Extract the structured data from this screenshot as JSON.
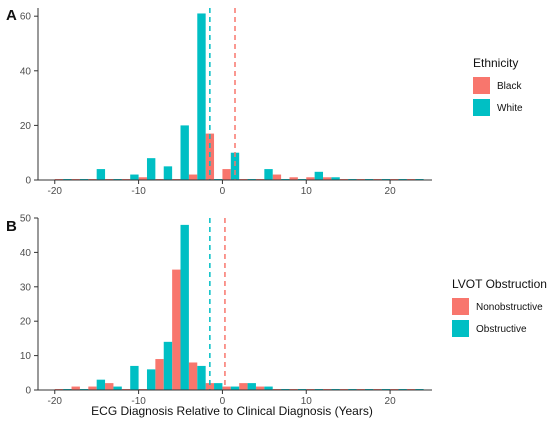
{
  "colors": {
    "series_a": "#F8766D",
    "series_b": "#00BFC4",
    "axis": "#333333"
  },
  "xlabel": "ECG Diagnosis Relative to Clinical Diagnosis (Years)",
  "chart_data": [
    {
      "type": "bar",
      "panel_label": "A",
      "title": "",
      "xlabel": "",
      "ylabel": "",
      "xlim": [
        -22,
        25
      ],
      "ylim": [
        0,
        63
      ],
      "xticks": [
        -20,
        -10,
        0,
        10,
        20
      ],
      "yticks": [
        0,
        20,
        40,
        60
      ],
      "bin_width": 2,
      "bin_centers": [
        -19,
        -17,
        -15,
        -13,
        -11,
        -9,
        -7,
        -5,
        -3,
        -1,
        1,
        3,
        5,
        7,
        9,
        11,
        13,
        15,
        17,
        19,
        21,
        23
      ],
      "legend_title": "Ethnicity",
      "legend_position": "right",
      "series": [
        {
          "name": "Black",
          "color": "#F8766D",
          "mean_line": 1.5,
          "values": [
            0,
            0,
            0,
            0,
            0,
            1,
            0,
            0,
            2,
            17,
            4,
            0,
            0,
            2,
            1,
            1,
            1,
            0,
            0,
            0,
            0,
            0
          ]
        },
        {
          "name": "White",
          "color": "#00BFC4",
          "mean_line": -1.5,
          "values": [
            0,
            0,
            4,
            0,
            2,
            8,
            5,
            20,
            61,
            0,
            10,
            0,
            4,
            0,
            0,
            3,
            1,
            0,
            0,
            0,
            0,
            0
          ]
        }
      ]
    },
    {
      "type": "bar",
      "panel_label": "B",
      "title": "",
      "xlabel": "ECG Diagnosis Relative to Clinical Diagnosis (Years)",
      "ylabel": "",
      "xlim": [
        -22,
        25
      ],
      "ylim": [
        0,
        50
      ],
      "xticks": [
        -20,
        -10,
        0,
        10,
        20
      ],
      "yticks": [
        0,
        10,
        20,
        30,
        40,
        50
      ],
      "bin_width": 2,
      "bin_centers": [
        -19,
        -17,
        -15,
        -13,
        -11,
        -9,
        -7,
        -5,
        -3,
        -1,
        1,
        3,
        5,
        7,
        9,
        11,
        13,
        15,
        17,
        19,
        21,
        23
      ],
      "legend_title": "LVOT Obstruction",
      "legend_position": "right",
      "series": [
        {
          "name": "Nonobstructive",
          "color": "#F8766D",
          "mean_line": 0.3,
          "values": [
            0,
            1,
            1,
            2,
            0,
            0,
            9,
            35,
            8,
            2,
            1,
            2,
            1,
            0,
            0,
            0,
            0,
            0,
            0,
            0,
            0,
            0
          ]
        },
        {
          "name": "Obstructive",
          "color": "#00BFC4",
          "mean_line": -1.5,
          "values": [
            0,
            0,
            3,
            1,
            7,
            6,
            14,
            48,
            7,
            2,
            1,
            2,
            1,
            0,
            0,
            0,
            0,
            0,
            0,
            0,
            0,
            0
          ]
        }
      ]
    }
  ]
}
